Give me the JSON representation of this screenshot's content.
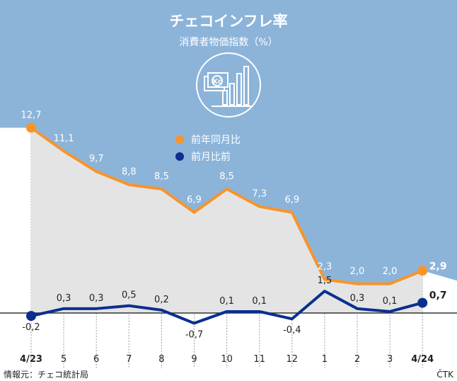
{
  "colors": {
    "background": "#8cb4d9",
    "area": "#e4e4e4",
    "orange": "#f7942b",
    "blue": "#0a2f8f",
    "baseline": "#333333",
    "gridline": "#9a9a9a"
  },
  "icon": "currency-bar-chart-icon",
  "chart_data": {
    "type": "line",
    "title": "チェコインフレ率",
    "subtitle": "消費者物価指数（%）",
    "categories": [
      "4/23",
      "5",
      "6",
      "7",
      "8",
      "9",
      "10",
      "11",
      "12",
      "1",
      "2",
      "3",
      "4/24"
    ],
    "bold_categories": [
      "4/23",
      "4/24"
    ],
    "series": [
      {
        "name": "前年同月比",
        "color": "#f7942b",
        "values": [
          12.7,
          11.1,
          9.7,
          8.8,
          8.5,
          6.9,
          8.5,
          7.3,
          6.9,
          2.3,
          2.0,
          2.0,
          2.9
        ],
        "labels": [
          "12,7",
          "11,1",
          "9,7",
          "8,8",
          "8,5",
          "6,9",
          "8,5",
          "7,3",
          "6,9",
          "2,3",
          "2,0",
          "2,0",
          "2,9"
        ]
      },
      {
        "name": "前月比前",
        "color": "#0a2f8f",
        "values": [
          -0.2,
          0.3,
          0.3,
          0.5,
          0.2,
          -0.7,
          0.1,
          0.1,
          -0.4,
          1.5,
          0.3,
          0.1,
          0.7
        ],
        "labels": [
          "-0,2",
          "0,3",
          "0,3",
          "0,5",
          "0,2",
          "-0,7",
          "0,1",
          "0,1",
          "-0,4",
          "1,5",
          "0,3",
          "0,1",
          "0,7"
        ]
      }
    ],
    "legend_position": "top-center",
    "grid": "vertical"
  },
  "footer": {
    "source": "情報元：チェコ統計局",
    "credit": "ČTK"
  }
}
